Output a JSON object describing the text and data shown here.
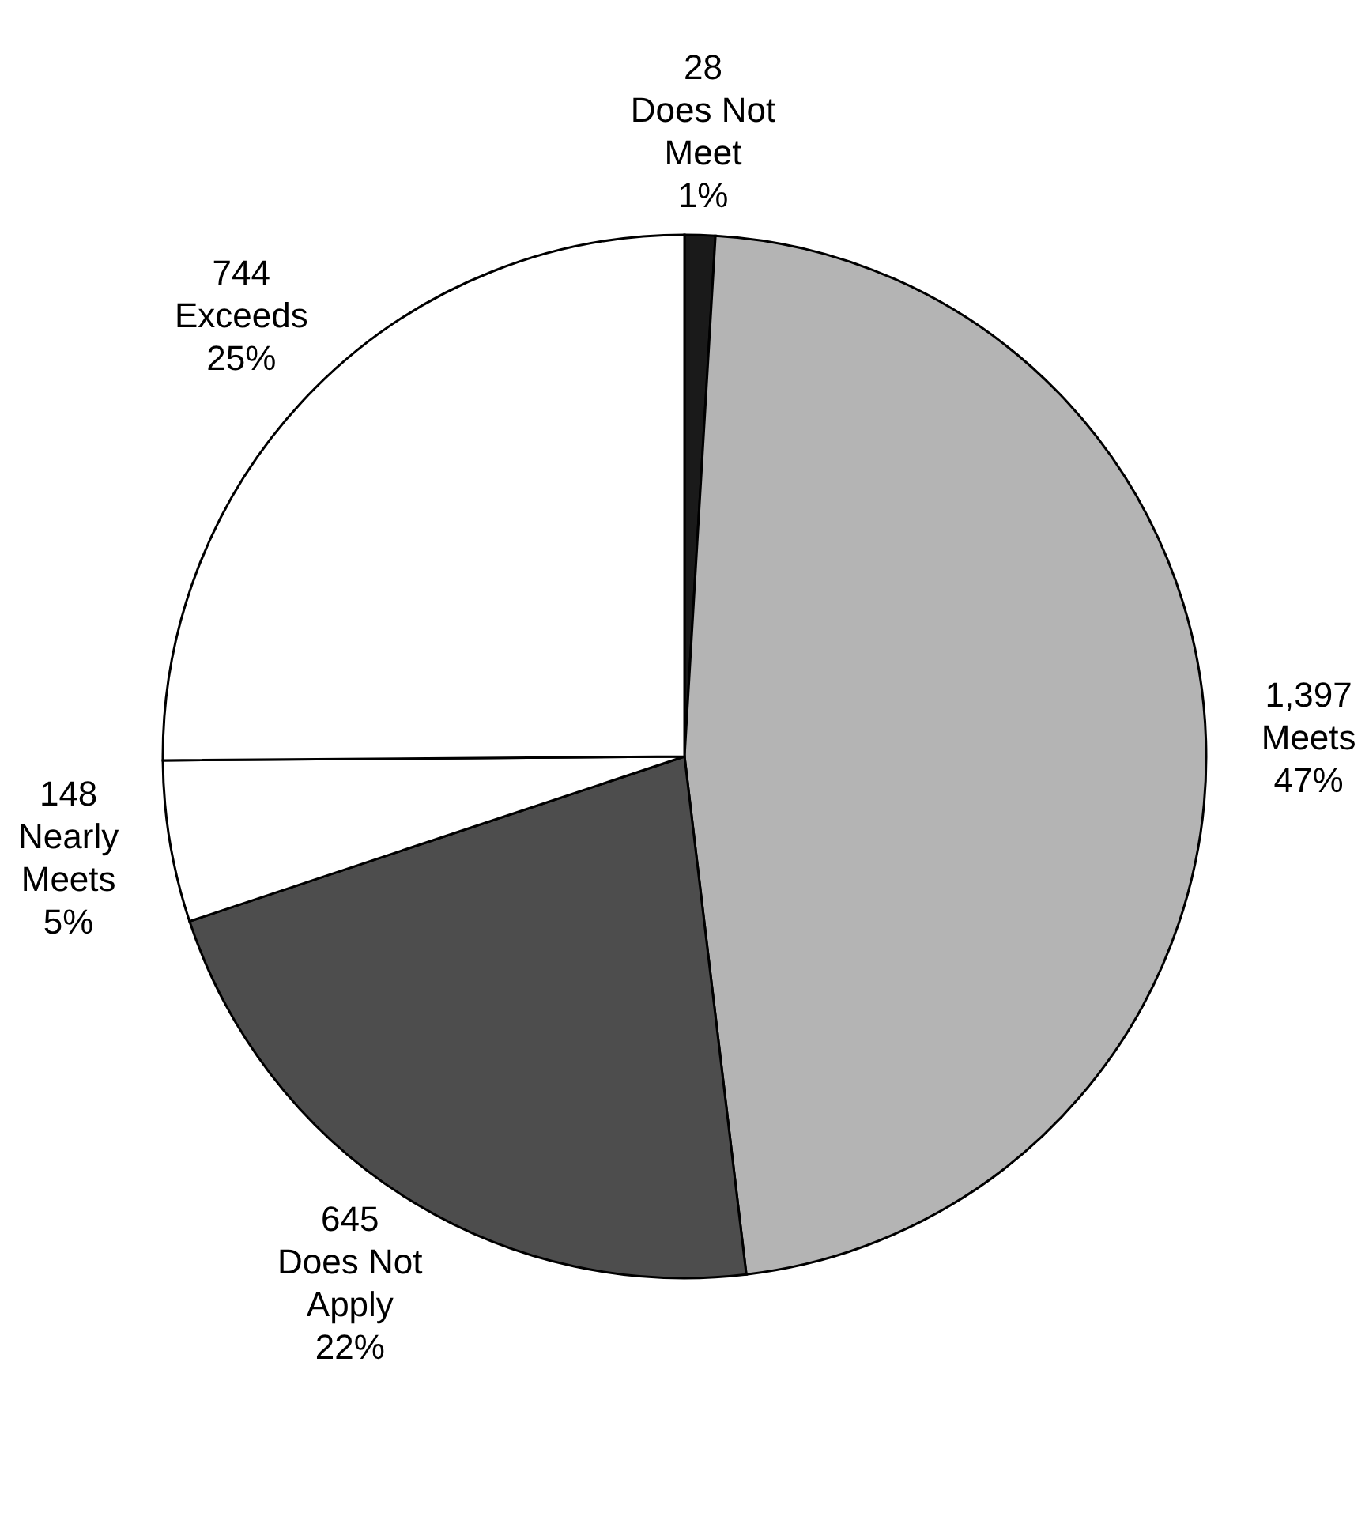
{
  "chart_data": {
    "type": "pie",
    "categories": [
      "Does Not Meet",
      "Meets",
      "Does Not Apply",
      "Nearly Meets",
      "Exceeds"
    ],
    "values": [
      28,
      1397,
      645,
      148,
      744
    ],
    "value_labels": [
      "28",
      "1,397",
      "645",
      "148",
      "744"
    ],
    "colors": [
      "#1a1a1a",
      "#b4b4b4",
      "#4d4d4d",
      "#ffffff",
      "#ffffff"
    ],
    "annotations": [
      "1%",
      "47%",
      "22%",
      "5%",
      "25%"
    ]
  }
}
